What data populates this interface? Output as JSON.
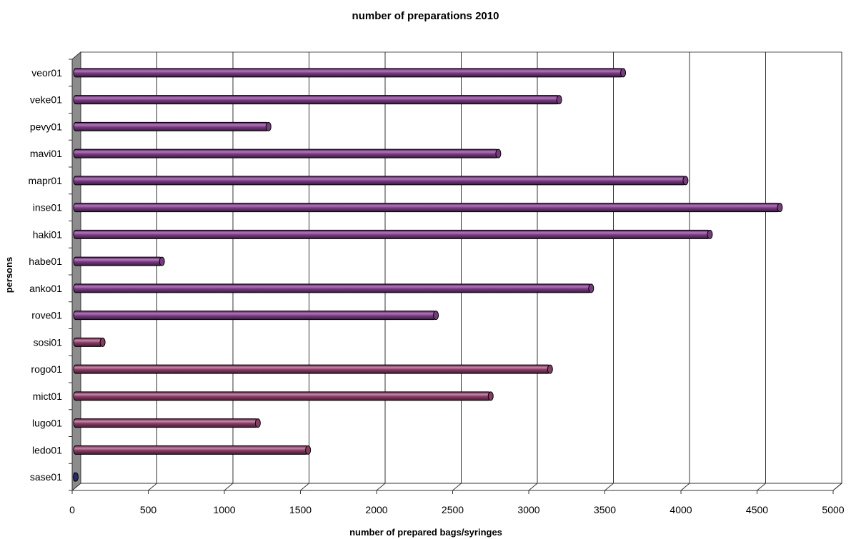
{
  "chart_data": {
    "type": "bar",
    "orientation": "horizontal",
    "title": "number of preparations 2010",
    "xlabel": "number of prepared bags/syringes",
    "ylabel": "persons",
    "xlim": [
      0,
      5000
    ],
    "x_ticks": [
      "0",
      "500",
      "1000",
      "1500",
      "2000",
      "2500",
      "3000",
      "3500",
      "4000",
      "4500",
      "5000"
    ],
    "grid": true,
    "categories": [
      "veor01",
      "veke01",
      "pevy01",
      "mavi01",
      "mapr01",
      "inse01",
      "haki01",
      "habe01",
      "anko01",
      "rove01",
      "sosi01",
      "rogo01",
      "mict01",
      "lugo01",
      "ledo01",
      "sase01"
    ],
    "values": [
      3620,
      3200,
      1290,
      2800,
      4030,
      4650,
      4190,
      590,
      3410,
      2390,
      200,
      3140,
      2750,
      1220,
      1550,
      10
    ],
    "bar_colors": [
      "#7a3a82",
      "#7a3a82",
      "#7a3a82",
      "#7a3a82",
      "#7a3a82",
      "#7a3a82",
      "#7a3a82",
      "#7a3a82",
      "#7a3a82",
      "#7a3a82",
      "#8a3b64",
      "#8a3b64",
      "#8a3b64",
      "#8a3b64",
      "#8a3b64",
      "#2a2a6a"
    ]
  }
}
